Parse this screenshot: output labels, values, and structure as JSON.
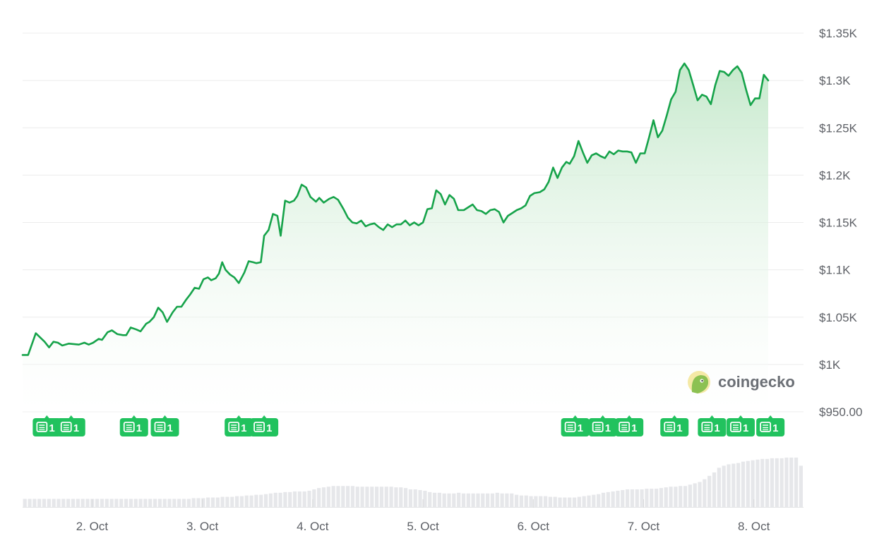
{
  "watermark": "coingecko",
  "colors": {
    "line": "#16a34a",
    "fill_top": "#bfe6c6",
    "grid": "#ececec",
    "news": "#21c25e",
    "volume": "#e6e7ea"
  },
  "chart_data": {
    "type": "area",
    "xlabel": "",
    "ylabel": "",
    "ylim": [
      950,
      1350
    ],
    "yticks": [
      {
        "value": 1350,
        "label": "$1.35K"
      },
      {
        "value": 1300,
        "label": "$1.3K"
      },
      {
        "value": 1250,
        "label": "$1.25K"
      },
      {
        "value": 1200,
        "label": "$1.2K"
      },
      {
        "value": 1150,
        "label": "$1.15K"
      },
      {
        "value": 1100,
        "label": "$1.1K"
      },
      {
        "value": 1050,
        "label": "$1.05K"
      },
      {
        "value": 1000,
        "label": "$1K"
      },
      {
        "value": 950,
        "label": "$950.00"
      }
    ],
    "xlim": [
      1.37,
      8.45
    ],
    "xticks": [
      {
        "value": 2,
        "label": "2. Oct"
      },
      {
        "value": 3,
        "label": "3. Oct"
      },
      {
        "value": 4,
        "label": "4. Oct"
      },
      {
        "value": 5,
        "label": "5. Oct"
      },
      {
        "value": 6,
        "label": "6. Oct"
      },
      {
        "value": 7,
        "label": "7. Oct"
      },
      {
        "value": 8,
        "label": "8. Oct"
      }
    ],
    "price": [
      [
        1.37,
        1010
      ],
      [
        1.42,
        1010
      ],
      [
        1.49,
        1033
      ],
      [
        1.57,
        1024
      ],
      [
        1.61,
        1018
      ],
      [
        1.65,
        1024
      ],
      [
        1.69,
        1023
      ],
      [
        1.73,
        1020
      ],
      [
        1.79,
        1022
      ],
      [
        1.88,
        1021
      ],
      [
        1.93,
        1023
      ],
      [
        1.97,
        1021
      ],
      [
        2.01,
        1023
      ],
      [
        2.06,
        1027
      ],
      [
        2.09,
        1026
      ],
      [
        2.14,
        1034
      ],
      [
        2.18,
        1036
      ],
      [
        2.23,
        1032
      ],
      [
        2.28,
        1031
      ],
      [
        2.31,
        1031
      ],
      [
        2.35,
        1039
      ],
      [
        2.4,
        1037
      ],
      [
        2.44,
        1035
      ],
      [
        2.49,
        1043
      ],
      [
        2.52,
        1045
      ],
      [
        2.56,
        1050
      ],
      [
        2.6,
        1060
      ],
      [
        2.64,
        1055
      ],
      [
        2.68,
        1045
      ],
      [
        2.73,
        1055
      ],
      [
        2.77,
        1061
      ],
      [
        2.81,
        1061
      ],
      [
        2.85,
        1068
      ],
      [
        2.89,
        1074
      ],
      [
        2.93,
        1081
      ],
      [
        2.97,
        1080
      ],
      [
        3.01,
        1090
      ],
      [
        3.05,
        1092
      ],
      [
        3.08,
        1089
      ],
      [
        3.12,
        1091
      ],
      [
        3.15,
        1096
      ],
      [
        3.18,
        1108
      ],
      [
        3.21,
        1100
      ],
      [
        3.25,
        1095
      ],
      [
        3.29,
        1092
      ],
      [
        3.33,
        1086
      ],
      [
        3.38,
        1097
      ],
      [
        3.42,
        1109
      ],
      [
        3.46,
        1108
      ],
      [
        3.49,
        1107
      ],
      [
        3.53,
        1108
      ],
      [
        3.56,
        1136
      ],
      [
        3.6,
        1142
      ],
      [
        3.64,
        1159
      ],
      [
        3.68,
        1157
      ],
      [
        3.71,
        1136
      ],
      [
        3.75,
        1173
      ],
      [
        3.79,
        1171
      ],
      [
        3.83,
        1173
      ],
      [
        3.86,
        1178
      ],
      [
        3.9,
        1190
      ],
      [
        3.94,
        1187
      ],
      [
        3.98,
        1177
      ],
      [
        4.03,
        1172
      ],
      [
        4.06,
        1176
      ],
      [
        4.1,
        1171
      ],
      [
        4.15,
        1175
      ],
      [
        4.19,
        1177
      ],
      [
        4.23,
        1174
      ],
      [
        4.28,
        1164
      ],
      [
        4.32,
        1155
      ],
      [
        4.36,
        1150
      ],
      [
        4.4,
        1149
      ],
      [
        4.44,
        1152
      ],
      [
        4.48,
        1146
      ],
      [
        4.52,
        1148
      ],
      [
        4.56,
        1149
      ],
      [
        4.6,
        1145
      ],
      [
        4.64,
        1142
      ],
      [
        4.68,
        1148
      ],
      [
        4.72,
        1145
      ],
      [
        4.76,
        1148
      ],
      [
        4.8,
        1148
      ],
      [
        4.84,
        1152
      ],
      [
        4.88,
        1147
      ],
      [
        4.92,
        1150
      ],
      [
        4.96,
        1147
      ],
      [
        5.0,
        1150
      ],
      [
        5.04,
        1164
      ],
      [
        5.08,
        1165
      ],
      [
        5.12,
        1184
      ],
      [
        5.16,
        1180
      ],
      [
        5.2,
        1169
      ],
      [
        5.24,
        1179
      ],
      [
        5.28,
        1175
      ],
      [
        5.32,
        1163
      ],
      [
        5.37,
        1163
      ],
      [
        5.41,
        1166
      ],
      [
        5.45,
        1169
      ],
      [
        5.49,
        1163
      ],
      [
        5.53,
        1162
      ],
      [
        5.57,
        1159
      ],
      [
        5.61,
        1163
      ],
      [
        5.65,
        1164
      ],
      [
        5.69,
        1161
      ],
      [
        5.73,
        1150
      ],
      [
        5.77,
        1157
      ],
      [
        5.81,
        1160
      ],
      [
        5.85,
        1163
      ],
      [
        5.89,
        1165
      ],
      [
        5.93,
        1168
      ],
      [
        5.97,
        1178
      ],
      [
        6.01,
        1181
      ],
      [
        6.06,
        1182
      ],
      [
        6.1,
        1185
      ],
      [
        6.14,
        1193
      ],
      [
        6.18,
        1208
      ],
      [
        6.22,
        1197
      ],
      [
        6.26,
        1208
      ],
      [
        6.3,
        1214
      ],
      [
        6.33,
        1212
      ],
      [
        6.37,
        1220
      ],
      [
        6.41,
        1236
      ],
      [
        6.45,
        1224
      ],
      [
        6.49,
        1213
      ],
      [
        6.53,
        1221
      ],
      [
        6.57,
        1223
      ],
      [
        6.61,
        1220
      ],
      [
        6.65,
        1218
      ],
      [
        6.69,
        1225
      ],
      [
        6.73,
        1222
      ],
      [
        6.77,
        1226
      ],
      [
        6.81,
        1225
      ],
      [
        6.85,
        1225
      ],
      [
        6.89,
        1224
      ],
      [
        6.93,
        1213
      ],
      [
        6.97,
        1223
      ],
      [
        7.01,
        1223
      ],
      [
        7.05,
        1240
      ],
      [
        7.09,
        1258
      ],
      [
        7.13,
        1240
      ],
      [
        7.17,
        1247
      ],
      [
        7.21,
        1263
      ],
      [
        7.25,
        1280
      ],
      [
        7.29,
        1288
      ],
      [
        7.33,
        1311
      ],
      [
        7.37,
        1318
      ],
      [
        7.41,
        1311
      ],
      [
        7.45,
        1295
      ],
      [
        7.49,
        1279
      ],
      [
        7.53,
        1285
      ],
      [
        7.57,
        1283
      ],
      [
        7.61,
        1275
      ],
      [
        7.65,
        1295
      ],
      [
        7.69,
        1310
      ],
      [
        7.73,
        1309
      ],
      [
        7.77,
        1305
      ],
      [
        7.81,
        1311
      ],
      [
        7.85,
        1315
      ],
      [
        7.89,
        1308
      ],
      [
        7.93,
        1290
      ],
      [
        7.97,
        1274
      ],
      [
        8.01,
        1281
      ],
      [
        8.05,
        1281
      ],
      [
        8.09,
        1306
      ],
      [
        8.13,
        1300
      ]
    ],
    "volume": [
      12,
      12,
      12,
      12,
      12,
      12,
      12,
      12,
      12,
      12,
      12,
      12,
      12,
      12,
      12,
      12,
      12,
      12,
      12,
      12,
      12,
      12,
      12,
      12,
      12,
      12,
      12,
      12,
      12,
      12,
      12,
      12,
      12,
      12,
      12,
      13,
      13,
      13,
      14,
      14,
      14,
      15,
      15,
      15,
      16,
      16,
      17,
      17,
      18,
      18,
      19,
      20,
      21,
      21,
      22,
      22,
      23,
      23,
      23,
      24,
      26,
      28,
      29,
      30,
      31,
      31,
      31,
      31,
      31,
      30,
      30,
      30,
      30,
      30,
      30,
      30,
      30,
      29,
      29,
      28,
      26,
      26,
      25,
      24,
      22,
      21,
      21,
      20,
      20,
      20,
      21,
      20,
      20,
      20,
      20,
      20,
      20,
      20,
      21,
      20,
      20,
      20,
      18,
      17,
      17,
      16,
      16,
      16,
      16,
      15,
      15,
      14,
      14,
      14,
      14,
      15,
      16,
      17,
      18,
      19,
      21,
      22,
      23,
      24,
      25,
      26,
      26,
      26,
      26,
      27,
      27,
      27,
      28,
      29,
      30,
      30,
      31,
      31,
      33,
      35,
      37,
      41,
      46,
      51,
      58,
      61,
      63,
      64,
      65,
      67,
      68,
      69,
      70,
      71,
      71,
      72,
      72,
      72,
      73,
      73,
      73,
      61
    ],
    "volume_max": 75,
    "news_markers": [
      {
        "x": 1.59,
        "label": "1"
      },
      {
        "x": 1.81,
        "label": "1"
      },
      {
        "x": 2.38,
        "label": "1"
      },
      {
        "x": 2.66,
        "label": "1"
      },
      {
        "x": 3.33,
        "label": "1"
      },
      {
        "x": 3.56,
        "label": "1"
      },
      {
        "x": 6.38,
        "label": "1"
      },
      {
        "x": 6.63,
        "label": "1"
      },
      {
        "x": 6.87,
        "label": "1"
      },
      {
        "x": 7.28,
        "label": "1"
      },
      {
        "x": 7.62,
        "label": "1"
      },
      {
        "x": 7.88,
        "label": "1"
      },
      {
        "x": 8.15,
        "label": "1"
      }
    ]
  }
}
